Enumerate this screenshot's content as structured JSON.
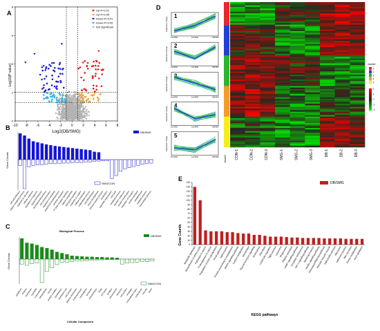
{
  "panels": {
    "A": "A",
    "B": "B",
    "C": "C",
    "D": "D",
    "E": "E"
  },
  "chart_data": [
    {
      "panel": "A",
      "type": "scatter",
      "xlabel": "Log2(DB/SMG)",
      "ylabel": "- Log10(P value)",
      "xticks": [
        "-10",
        "-8",
        "-6",
        "-4",
        "-2",
        "0",
        "2",
        "4",
        "6",
        "8"
      ],
      "xlim": [
        -10,
        8
      ],
      "ylim": [
        0,
        8
      ],
      "yticks": [
        "0",
        "2",
        "4",
        "6",
        "8"
      ],
      "legend": [
        "Up-P<0.01",
        "Up-P<0.05",
        "Down-P<0.01",
        "Down-P<0.05",
        "Not significant"
      ],
      "colors": {
        "up01": "#e31a1c",
        "up05": "#f5a623",
        "down01": "#1f1fd1",
        "down05": "#33b5e5",
        "ns": "#b3b3b3"
      },
      "thresholds": {
        "x": [
          -1,
          1
        ],
        "y": [
          1.3,
          2
        ]
      }
    },
    {
      "panel": "B",
      "type": "bar",
      "xlabel": "Biological Process",
      "ylabel": "Gene Counts",
      "legend_top": "DB/SMG",
      "legend_bottom": "SMG/CON",
      "up_color": "#1515d6",
      "up_values": [
        100,
        92,
        80,
        70,
        66,
        62,
        58,
        55,
        52,
        50,
        48,
        46,
        44,
        42,
        40,
        38,
        36,
        30,
        28,
        0,
        0,
        0,
        0,
        0,
        0,
        0,
        0,
        0,
        0,
        0,
        0
      ],
      "down_values": [
        20,
        100,
        25,
        20,
        18,
        18,
        16,
        14,
        14,
        13,
        12,
        12,
        11,
        10,
        10,
        9,
        8,
        6,
        5,
        4,
        3,
        65,
        55,
        40,
        32,
        28,
        24,
        20,
        16,
        14,
        12
      ],
      "categories": [
        "cell-cell adhesion",
        "cellular metabolic process",
        "response to stimulus",
        "cellular response",
        "regulation of response",
        "signal transduction",
        "developmental process",
        "cell communication",
        "regulation of signaling",
        "anatomical morphogenesis",
        "positive regulation",
        "TF-beta receptor signaling",
        "cellular component",
        "biological regulation",
        "response to oxygen",
        "cellular localization",
        "multicellular process",
        "cell differentiation",
        "tissue development",
        "immune system process",
        "localization",
        "organelle organization",
        "cell cycle",
        "metabolic process",
        "nitrogen compound",
        "protein modification",
        "regulation of transport",
        "vesicle mediated",
        "establishment",
        "catabolic process",
        "homeostatic process"
      ]
    },
    {
      "panel": "C",
      "type": "bar",
      "xlabel": "Cellular Component",
      "ylabel": "Gene Counts",
      "legend_top": "DB/SMG",
      "legend_bottom": "SMG/CON",
      "up_color": "#1b8a1b",
      "up_values": [
        120,
        95,
        90,
        82,
        70,
        64,
        55,
        42,
        35,
        28,
        20,
        18,
        16,
        14,
        14,
        12,
        12,
        10,
        10,
        8,
        0,
        0,
        0,
        0,
        0,
        0,
        0
      ],
      "down_values": [
        20,
        25,
        18,
        15,
        95,
        50,
        35,
        22,
        14,
        12,
        10,
        8,
        8,
        6,
        5,
        4,
        3,
        2,
        2,
        2,
        20,
        16,
        14,
        12,
        10,
        10,
        8
      ],
      "categories": [
        "cytoplasm",
        "nucleus",
        "membrane",
        "organelle",
        "extracellular",
        "cell periphery",
        "vesicle",
        "protein complex",
        "cytoskeleton",
        "membrane raft",
        "cell junction",
        "plasma membrane",
        "endomembrane",
        "nucleoplasm",
        "lysosome",
        "mitochondrion",
        "Golgi",
        "ER lumen",
        "synapse",
        "chromosome",
        "ribosome",
        "cell surface",
        "envelope",
        "extracellular matrix",
        "centrosome",
        "vacuole",
        "cilium"
      ]
    },
    {
      "panel": "D",
      "type": "heatmap",
      "columns": [
        "CON-1",
        "CON-2",
        "CON-3",
        "SMG-1",
        "SMG-2",
        "SMG-3",
        "DB-1",
        "DB-2",
        "DB-3"
      ],
      "cluster_label": "cluster",
      "cluster_legend": [
        "1",
        "2",
        "3",
        "4",
        "5"
      ],
      "cluster_colors": [
        "#e8272e",
        "#2340d6",
        "#2db52d",
        "#f39c28",
        "#f5ee1f"
      ],
      "cluster_sizes": [
        0.16,
        0.21,
        0.21,
        0.21,
        0.21
      ],
      "scale_ticks": [
        "2",
        "1",
        "0",
        "-1",
        "-2"
      ],
      "trend_labels": [
        "1",
        "2",
        "3",
        "4",
        "5"
      ],
      "trend_ylabel": "Expression change",
      "trend_xticks": [
        "Con/SMG",
        "Con/SMG",
        "DB/SMG"
      ],
      "trend_shapes": [
        [
          -1.5,
          -0.3,
          1.8
        ],
        [
          0.6,
          -1.0,
          1.6
        ],
        [
          1.5,
          0.2,
          -1.3
        ],
        [
          1.2,
          -1.1,
          -0.2
        ],
        [
          -0.9,
          -1.4,
          0.9
        ]
      ]
    },
    {
      "panel": "E",
      "type": "bar",
      "xlabel": "KEGG pathways",
      "ylabel": "Gene Counts",
      "legend": "DB/SMG",
      "bar_color": "#c01f1f",
      "ylim": [
        0,
        140
      ],
      "yticks": [
        "0",
        "10",
        "20",
        "30",
        "40",
        "50",
        "60",
        "70",
        "80",
        "90",
        "100",
        "110",
        "120",
        "130",
        "140"
      ],
      "values": [
        130,
        100,
        32,
        30,
        30,
        30,
        28,
        28,
        26,
        25,
        25,
        22,
        22,
        20,
        18,
        18,
        18,
        17,
        16,
        16,
        15,
        15,
        15,
        15,
        14,
        14,
        14,
        14,
        13,
        13,
        13,
        13
      ],
      "categories": [
        "Metabolic pathways",
        "Biosynthesis of amino acids",
        "Pathways in cancer",
        "Proteoglycans in cancer",
        "Regulation of actin cytoskeleton",
        "Focal adhesion",
        "Spliceosome",
        "Protein processing in endoplasmic",
        "MAPK signaling pathway",
        "Carbon metabolism",
        "Amoebiasis",
        "Thyroid hormone signaling",
        "Endocytosis",
        "Glycolysis",
        "Leukocyte migration",
        "Tight junction",
        "Lysosome",
        "Phagosome",
        "Platelet activation",
        "cAMP signaling pathway",
        "Circadian entrainment",
        "HIF-1 signaling pathway",
        "Bacterial invasion",
        "Insulin signaling pathway",
        "Aminoacyl-tRNA biosynthesis",
        "Vascular smooth muscle",
        "Salmonella infection",
        "Ribosome",
        "Adherens junction",
        "Bile secretion",
        "Purine metabolism",
        "Axon guidance"
      ]
    }
  ]
}
